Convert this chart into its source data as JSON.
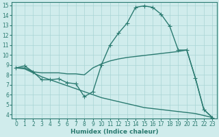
{
  "series": [
    {
      "x": [
        0,
        1,
        2,
        3,
        4,
        5,
        6,
        7,
        8,
        9,
        10,
        11,
        12,
        13,
        14,
        15,
        16,
        17,
        18,
        19,
        20,
        21,
        22,
        23
      ],
      "y": [
        8.7,
        8.9,
        8.3,
        7.5,
        7.5,
        7.6,
        7.2,
        7.1,
        5.8,
        6.3,
        9.0,
        11.0,
        12.2,
        13.2,
        14.8,
        14.95,
        14.8,
        14.1,
        12.9,
        10.5,
        10.5,
        7.7,
        4.5,
        3.7
      ],
      "marker": "+"
    },
    {
      "x": [
        0,
        1,
        2,
        3,
        4,
        5,
        6,
        7,
        8,
        9,
        10,
        11,
        12,
        13,
        14,
        15,
        16,
        17,
        18,
        19,
        20,
        21,
        22,
        23
      ],
      "y": [
        8.7,
        8.7,
        8.3,
        8.2,
        8.2,
        8.2,
        8.1,
        8.1,
        8.0,
        8.7,
        9.1,
        9.4,
        9.6,
        9.75,
        9.85,
        9.95,
        10.05,
        10.15,
        10.25,
        10.35,
        10.5,
        7.7,
        4.5,
        3.7
      ],
      "marker": null
    },
    {
      "x": [
        0,
        1,
        2,
        3,
        4,
        5,
        6,
        7,
        8,
        9,
        10,
        11,
        12,
        13,
        14,
        15,
        16,
        17,
        18,
        19,
        20,
        21,
        22,
        23
      ],
      "y": [
        8.7,
        8.6,
        8.2,
        7.8,
        7.5,
        7.2,
        6.9,
        6.6,
        6.3,
        6.0,
        5.7,
        5.5,
        5.3,
        5.1,
        4.9,
        4.7,
        4.6,
        4.5,
        4.4,
        4.3,
        4.2,
        4.1,
        3.9,
        3.7
      ],
      "marker": null
    }
  ],
  "color": "#2a7a70",
  "bg_color": "#d0ecec",
  "grid_color": "#a8d4d4",
  "xlabel": "Humidex (Indice chaleur)",
  "xlim": [
    -0.5,
    23.5
  ],
  "ylim": [
    3.6,
    15.3
  ],
  "yticks": [
    4,
    5,
    6,
    7,
    8,
    9,
    10,
    11,
    12,
    13,
    14,
    15
  ],
  "xticks": [
    0,
    1,
    2,
    3,
    4,
    5,
    6,
    7,
    8,
    9,
    10,
    11,
    12,
    13,
    14,
    15,
    16,
    17,
    18,
    19,
    20,
    21,
    22,
    23
  ],
  "tick_fontsize": 5.5,
  "xlabel_fontsize": 6.5,
  "linewidth": 1.0,
  "markersize": 4,
  "markeredgewidth": 0.8
}
